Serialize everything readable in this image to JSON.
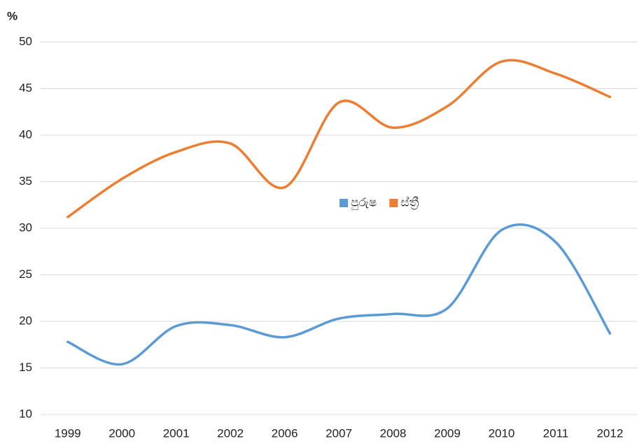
{
  "chart_data": {
    "type": "line",
    "y_label": "%",
    "categories": [
      "1999",
      "2000",
      "2001",
      "2002",
      "2006",
      "2007",
      "2008",
      "2009",
      "2010",
      "2011",
      "2012"
    ],
    "series": [
      {
        "name": "පුරුෂ",
        "color": "#5b9bd5",
        "values": [
          17.8,
          15.4,
          19.5,
          19.6,
          18.3,
          20.3,
          20.8,
          21.4,
          29.8,
          28.5,
          18.7
        ]
      },
      {
        "name": "ස්ත්‍රී",
        "color": "#ed7d31",
        "values": [
          31.2,
          35.3,
          38.2,
          39.1,
          34.4,
          43.5,
          40.8,
          43.1,
          47.9,
          46.6,
          44.1
        ]
      }
    ],
    "ylim": [
      10,
      50
    ],
    "yticks": [
      10,
      15,
      20,
      25,
      30,
      35,
      40,
      45,
      50
    ],
    "grid": true,
    "legend": "center"
  }
}
